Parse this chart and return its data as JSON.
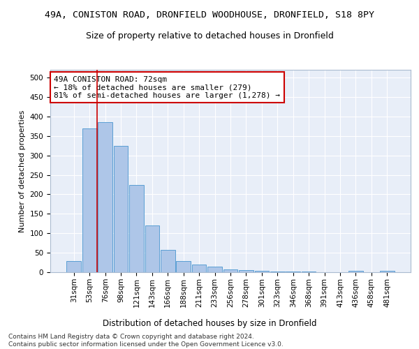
{
  "title1": "49A, CONISTON ROAD, DRONFIELD WOODHOUSE, DRONFIELD, S18 8PY",
  "title2": "Size of property relative to detached houses in Dronfield",
  "xlabel": "Distribution of detached houses by size in Dronfield",
  "ylabel": "Number of detached properties",
  "footnote1": "Contains HM Land Registry data © Crown copyright and database right 2024.",
  "footnote2": "Contains public sector information licensed under the Open Government Licence v3.0.",
  "categories": [
    "31sqm",
    "53sqm",
    "76sqm",
    "98sqm",
    "121sqm",
    "143sqm",
    "166sqm",
    "188sqm",
    "211sqm",
    "233sqm",
    "256sqm",
    "278sqm",
    "301sqm",
    "323sqm",
    "346sqm",
    "368sqm",
    "391sqm",
    "413sqm",
    "436sqm",
    "458sqm",
    "481sqm"
  ],
  "values": [
    28,
    370,
    385,
    325,
    225,
    120,
    58,
    28,
    20,
    15,
    7,
    5,
    3,
    1,
    1,
    1,
    0,
    0,
    4,
    0,
    3
  ],
  "bar_color": "#aec6e8",
  "bar_edge_color": "#5a9fd4",
  "vline_x": 1.5,
  "vline_color": "#cc0000",
  "annotation_text": "49A CONISTON ROAD: 72sqm\n← 18% of detached houses are smaller (279)\n81% of semi-detached houses are larger (1,278) →",
  "annotation_box_facecolor": "#ffffff",
  "annotation_box_edgecolor": "#cc0000",
  "ylim": [
    0,
    520
  ],
  "yticks": [
    0,
    50,
    100,
    150,
    200,
    250,
    300,
    350,
    400,
    450,
    500
  ],
  "fig_facecolor": "#ffffff",
  "axes_facecolor": "#e8eef8",
  "grid_color": "#ffffff",
  "title1_fontsize": 9.5,
  "title2_fontsize": 9,
  "xlabel_fontsize": 8.5,
  "ylabel_fontsize": 8,
  "tick_fontsize": 7.5,
  "annotation_fontsize": 8,
  "footnote_fontsize": 6.5
}
